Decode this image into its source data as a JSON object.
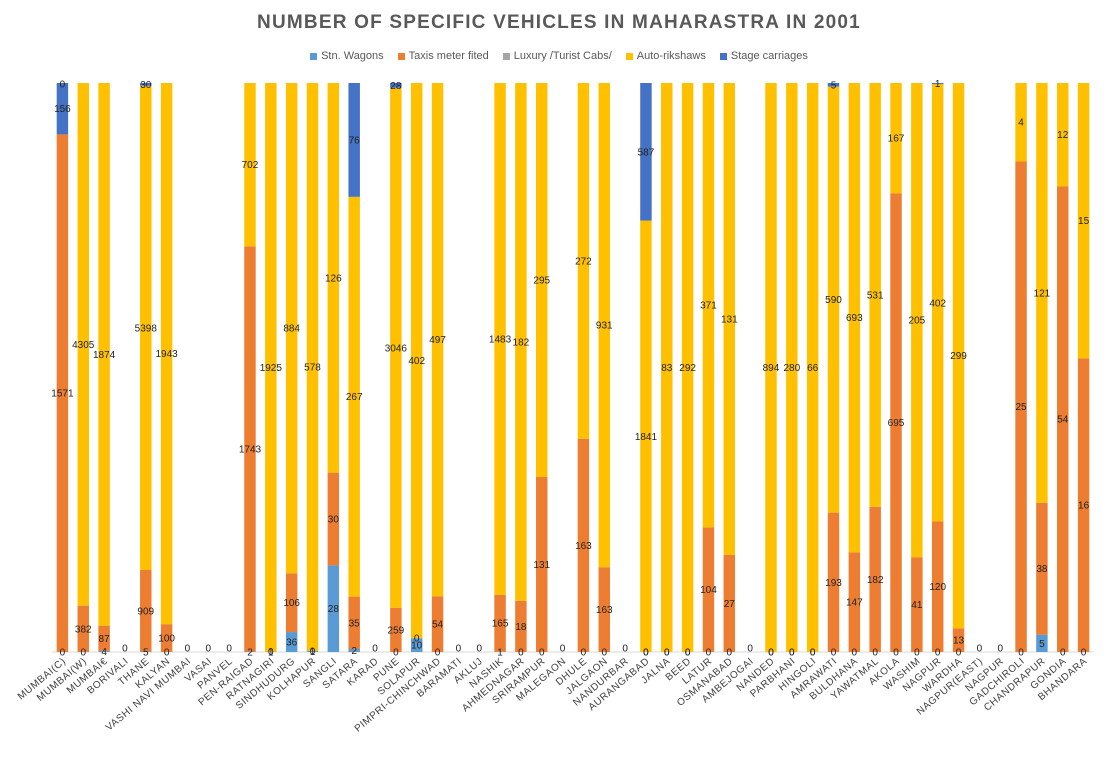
{
  "chart_data": {
    "type": "bar",
    "stacked": "100%",
    "title": "NUMBER OF SPECIFIC VEHICLES IN MAHARASTRA IN 2001",
    "legend_position": "top",
    "grid": false,
    "categories": [
      "MUMBAI(C)",
      "MUMBAI(W)",
      "MUMBAI€",
      "BORIVALI",
      "THANE",
      "KALYAN",
      "VASHI NAVI MUMBAI",
      "VASAI",
      "PANVEL",
      "PEN-RAIGAD",
      "RATNAGIRI",
      "SINDHUDURG",
      "KOLHAPUR",
      "SANGLI",
      "SATARA",
      "KARAD",
      "PUNE",
      "SOLAPUR",
      "PIMPRI-CHINCHWAD",
      "BARAMATI",
      "AKLUJ",
      "NASHIK",
      "AHMEDNAGAR",
      "SRIRAMPUR",
      "MALEGAON",
      "DHULE",
      "JALGAON",
      "NANDURBAR",
      "AURANGABAD",
      "JALNA",
      "BEED",
      "LATUR",
      "OSMANABAD",
      "AMBEJOGAI",
      "NANDED",
      "PARBHANI",
      "HINGOLI",
      "AMRAWATI",
      "BULDHANA",
      "YAWATMAL",
      "AKOLA",
      "WASHIM",
      "NAGPUR",
      "WARDHA",
      "NAGPUR(EAST)",
      "NAGPUR",
      "GADCHIROLI",
      "CHANDRAPUR",
      "GONDIA",
      "BHANDARA"
    ],
    "series": [
      {
        "name": "Stn. Wagons",
        "color": "#5B9BD5",
        "values": [
          0,
          0,
          4,
          0,
          5,
          0,
          0,
          0,
          0,
          2,
          1,
          36,
          1,
          28,
          2,
          0,
          0,
          10,
          0,
          0,
          0,
          1,
          0,
          0,
          0,
          0,
          0,
          0,
          0,
          0,
          0,
          0,
          0,
          0,
          0,
          0,
          0,
          0,
          0,
          0,
          0,
          0,
          0,
          0,
          0,
          0,
          0,
          5,
          0,
          0
        ]
      },
      {
        "name": "Taxis meter fited",
        "color": "#ED7D31",
        "values": [
          1571,
          382,
          87,
          0,
          909,
          100,
          0,
          0,
          0,
          1743,
          0,
          106,
          0,
          30,
          35,
          0,
          259,
          0,
          54,
          0,
          0,
          165,
          18,
          131,
          0,
          163,
          163,
          0,
          0,
          0,
          0,
          104,
          27,
          0,
          0,
          0,
          0,
          193,
          147,
          182,
          695,
          41,
          120,
          13,
          0,
          0,
          25,
          38,
          54,
          16
        ]
      },
      {
        "name": "Luxury /Turist Cabs/",
        "color": "#A5A5A5",
        "values": [
          0,
          0,
          0,
          0,
          0,
          0,
          0,
          0,
          0,
          0,
          0,
          0,
          0,
          0,
          0,
          0,
          0,
          0,
          0,
          0,
          0,
          0,
          0,
          0,
          0,
          0,
          0,
          0,
          0,
          0,
          0,
          0,
          0,
          0,
          0,
          0,
          0,
          0,
          0,
          0,
          0,
          0,
          0,
          0,
          0,
          0,
          0,
          0,
          0,
          0
        ]
      },
      {
        "name": "Auto-rikshaws",
        "color": "#FFC000",
        "values": [
          0,
          4305,
          1874,
          0,
          5398,
          1943,
          0,
          0,
          0,
          702,
          1925,
          884,
          578,
          126,
          267,
          0,
          3046,
          402,
          497,
          0,
          0,
          1483,
          182,
          295,
          0,
          272,
          931,
          0,
          1841,
          83,
          292,
          371,
          131,
          0,
          894,
          280,
          66,
          590,
          693,
          531,
          167,
          205,
          402,
          299,
          0,
          0,
          4,
          121,
          12,
          15
        ]
      },
      {
        "name": "Stage carriages",
        "color": "#4472C4",
        "values": [
          156,
          0,
          0,
          0,
          30,
          0,
          0,
          0,
          0,
          0,
          0,
          0,
          0,
          0,
          76,
          0,
          28,
          0,
          0,
          0,
          0,
          0,
          0,
          0,
          0,
          0,
          0,
          0,
          587,
          0,
          0,
          0,
          0,
          0,
          0,
          0,
          0,
          5,
          0,
          0,
          0,
          0,
          1,
          0,
          0,
          0,
          0,
          0,
          0,
          0
        ]
      }
    ]
  }
}
